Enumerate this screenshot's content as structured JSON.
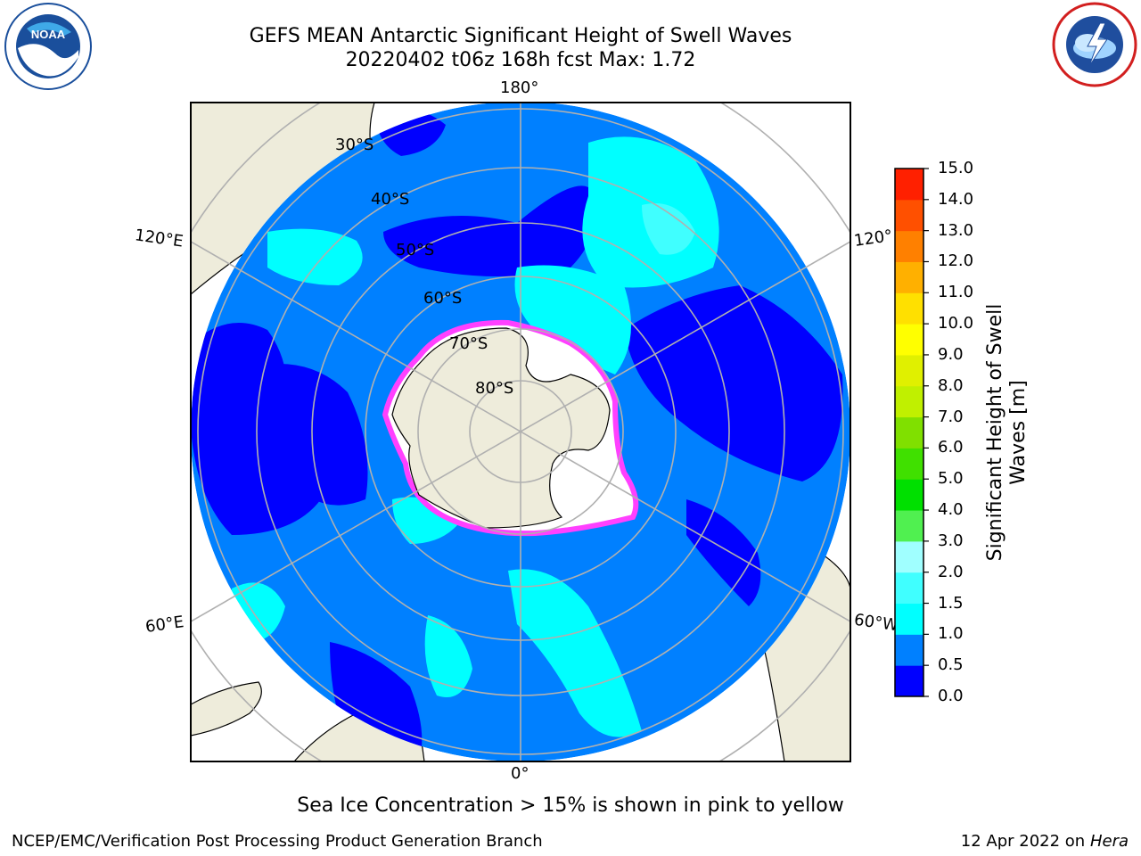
{
  "header": {
    "title_line1": "GEFS MEAN Antarctic Significant Height of Swell Waves",
    "title_line2": "20220402 t06z 168h fcst   Max: 1.72"
  },
  "logos": {
    "noaa": {
      "text": "NOAA",
      "ring_text": "NATIONAL OCEANIC AND ATMOSPHERIC ADMINISTRATION · U.S. DEPARTMENT OF COMMERCE"
    },
    "nws": {
      "ring_text": "NATIONAL WEATHER SERVICE"
    }
  },
  "map": {
    "longitude_labels": {
      "top": "180°",
      "bottom": "0°",
      "upper_left": "120°E",
      "lower_left": "60°E",
      "upper_right": "120°",
      "lower_right": "60°W"
    },
    "latitude_labels": [
      "30°S",
      "40°S",
      "50°S",
      "60°S",
      "70°S",
      "80°S"
    ]
  },
  "colorbar": {
    "title_line1": "Significant Height of Swell",
    "title_line2": "Waves [m]",
    "ticks": [
      "0.0",
      "0.5",
      "1.0",
      "1.5",
      "2.0",
      "3.0",
      "4.0",
      "5.0",
      "6.0",
      "7.0",
      "8.0",
      "9.0",
      "10.0",
      "11.0",
      "12.0",
      "13.0",
      "14.0",
      "15.0"
    ],
    "colors": [
      "#0000ff",
      "#0080ff",
      "#00ffff",
      "#40ffff",
      "#a0ffff",
      "#50f050",
      "#00e000",
      "#40e000",
      "#80e000",
      "#c0f000",
      "#e0f000",
      "#ffff00",
      "#ffe000",
      "#ffb000",
      "#ff8000",
      "#ff5000",
      "#ff2000"
    ]
  },
  "colors": {
    "land": "#eeecdb",
    "ocean_low": "#0000ff",
    "ocean_mid": "#0080ff",
    "ocean_high": "#00ffff",
    "sea_ice": "#ff40ff"
  },
  "footer": {
    "note": "Sea Ice Concentration > 15% is shown in pink to yellow",
    "left": "NCEP/EMC/Verification Post Processing Product Generation Branch",
    "right_date": "12 Apr 2022 on ",
    "right_machine": "Hera"
  }
}
